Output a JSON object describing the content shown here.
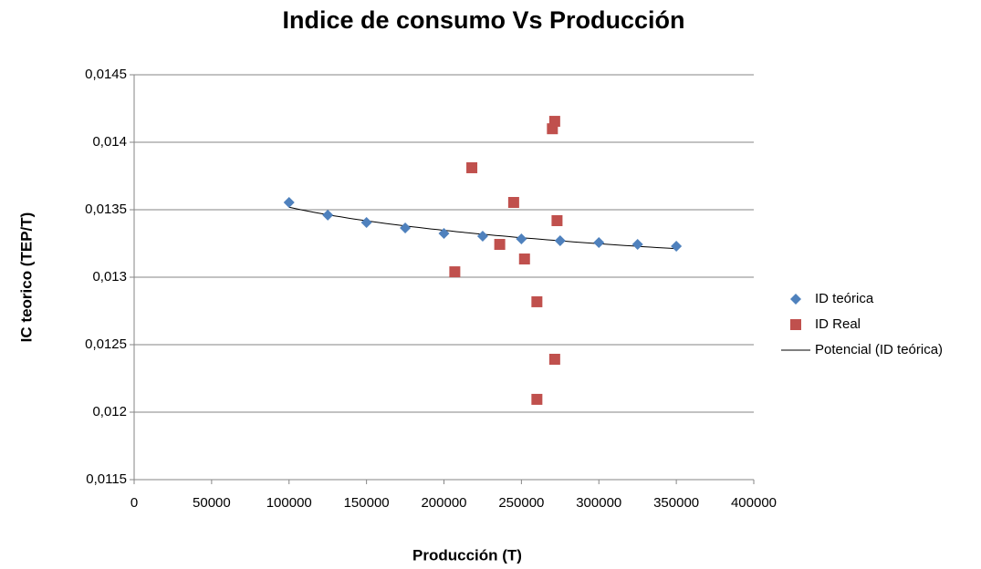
{
  "chart_data": {
    "type": "scatter",
    "title": "Indice de consumo Vs Producción",
    "xlabel": "Producción (T)",
    "ylabel": "IC teorico (TEP/T)",
    "xlim": [
      0,
      400000
    ],
    "xticks": [
      0,
      50000,
      100000,
      150000,
      200000,
      250000,
      300000,
      350000,
      400000
    ],
    "ylim": [
      0.0115,
      0.0145
    ],
    "yticks": [
      {
        "value": 0.0115,
        "label": "0,0115"
      },
      {
        "value": 0.012,
        "label": "0,012"
      },
      {
        "value": 0.0125,
        "label": "0,0125"
      },
      {
        "value": 0.013,
        "label": "0,013"
      },
      {
        "value": 0.0135,
        "label": "0,0135"
      },
      {
        "value": 0.014,
        "label": "0,014"
      },
      {
        "value": 0.0145,
        "label": "0,0145"
      }
    ],
    "grid": true,
    "legend": "right",
    "series": [
      {
        "name": "ID teórica",
        "color": "#4f81bd",
        "marker": "diamond",
        "x": [
          100000,
          125000,
          150000,
          175000,
          200000,
          225000,
          250000,
          275000,
          300000,
          325000,
          350000
        ],
        "values": [
          0.013554,
          0.01346,
          0.013405,
          0.013365,
          0.013324,
          0.013304,
          0.013284,
          0.01327,
          0.013257,
          0.013243,
          0.01323
        ]
      },
      {
        "name": "ID Real",
        "color": "#c0504d",
        "marker": "square",
        "x": [
          218000,
          245000,
          236000,
          207000,
          252000,
          270000,
          271500,
          273000,
          260000,
          271500,
          260000
        ],
        "values": [
          0.013811,
          0.013554,
          0.013243,
          0.01304,
          0.013135,
          0.0141,
          0.014155,
          0.013419,
          0.012818,
          0.012392,
          0.012095
        ]
      }
    ],
    "trendline": {
      "name": "Potencial (ID teórica)",
      "color": "#000000",
      "fit": "power"
    }
  }
}
